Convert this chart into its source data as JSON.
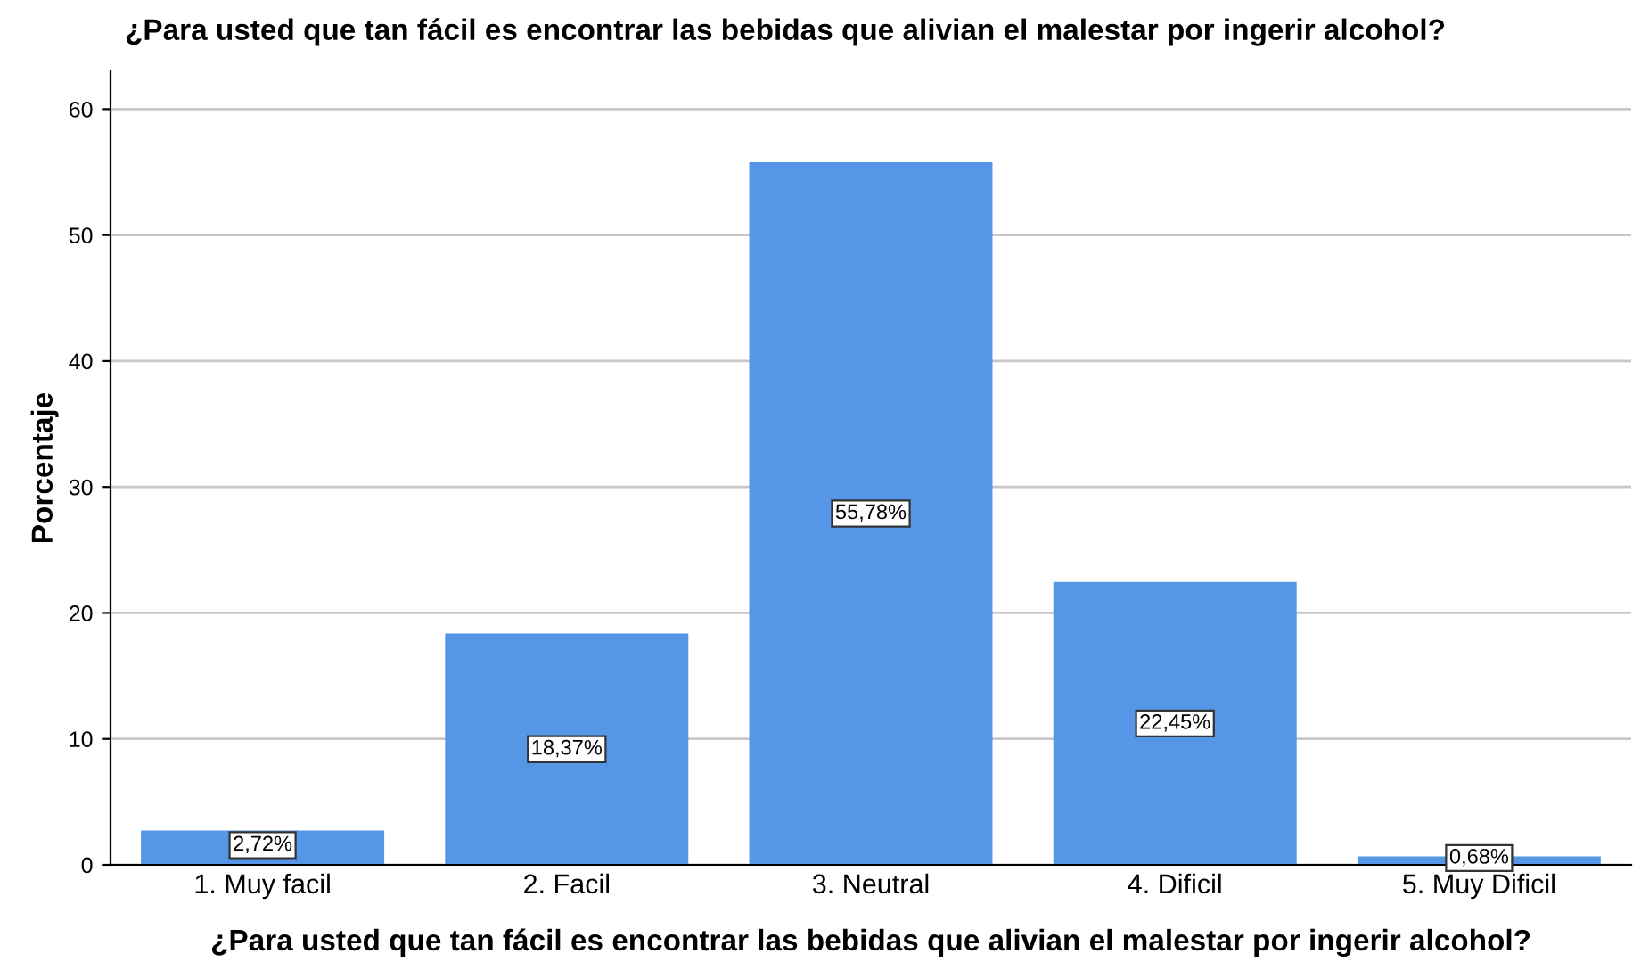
{
  "chart_data": {
    "type": "bar",
    "title": "¿Para usted que tan fácil es encontrar las bebidas que alivian el malestar por ingerir alcohol?",
    "xlabel": "¿Para usted que tan fácil es encontrar las bebidas que alivian el malestar por ingerir alcohol?",
    "ylabel": "Porcentaje",
    "categories": [
      "1. Muy facil",
      "2. Facil",
      "3. Neutral",
      "4. Dificil",
      "5. Muy Dificil"
    ],
    "values": [
      2.72,
      18.37,
      55.78,
      22.45,
      0.68
    ],
    "value_labels": [
      "2,72%",
      "18,37%",
      "55,78%",
      "22,45%",
      "0,68%"
    ],
    "color": "#5596e6",
    "ylim": [
      0,
      63
    ],
    "yticks": [
      0,
      10,
      20,
      30,
      40,
      50,
      60
    ],
    "grid": "y",
    "legend": false
  }
}
